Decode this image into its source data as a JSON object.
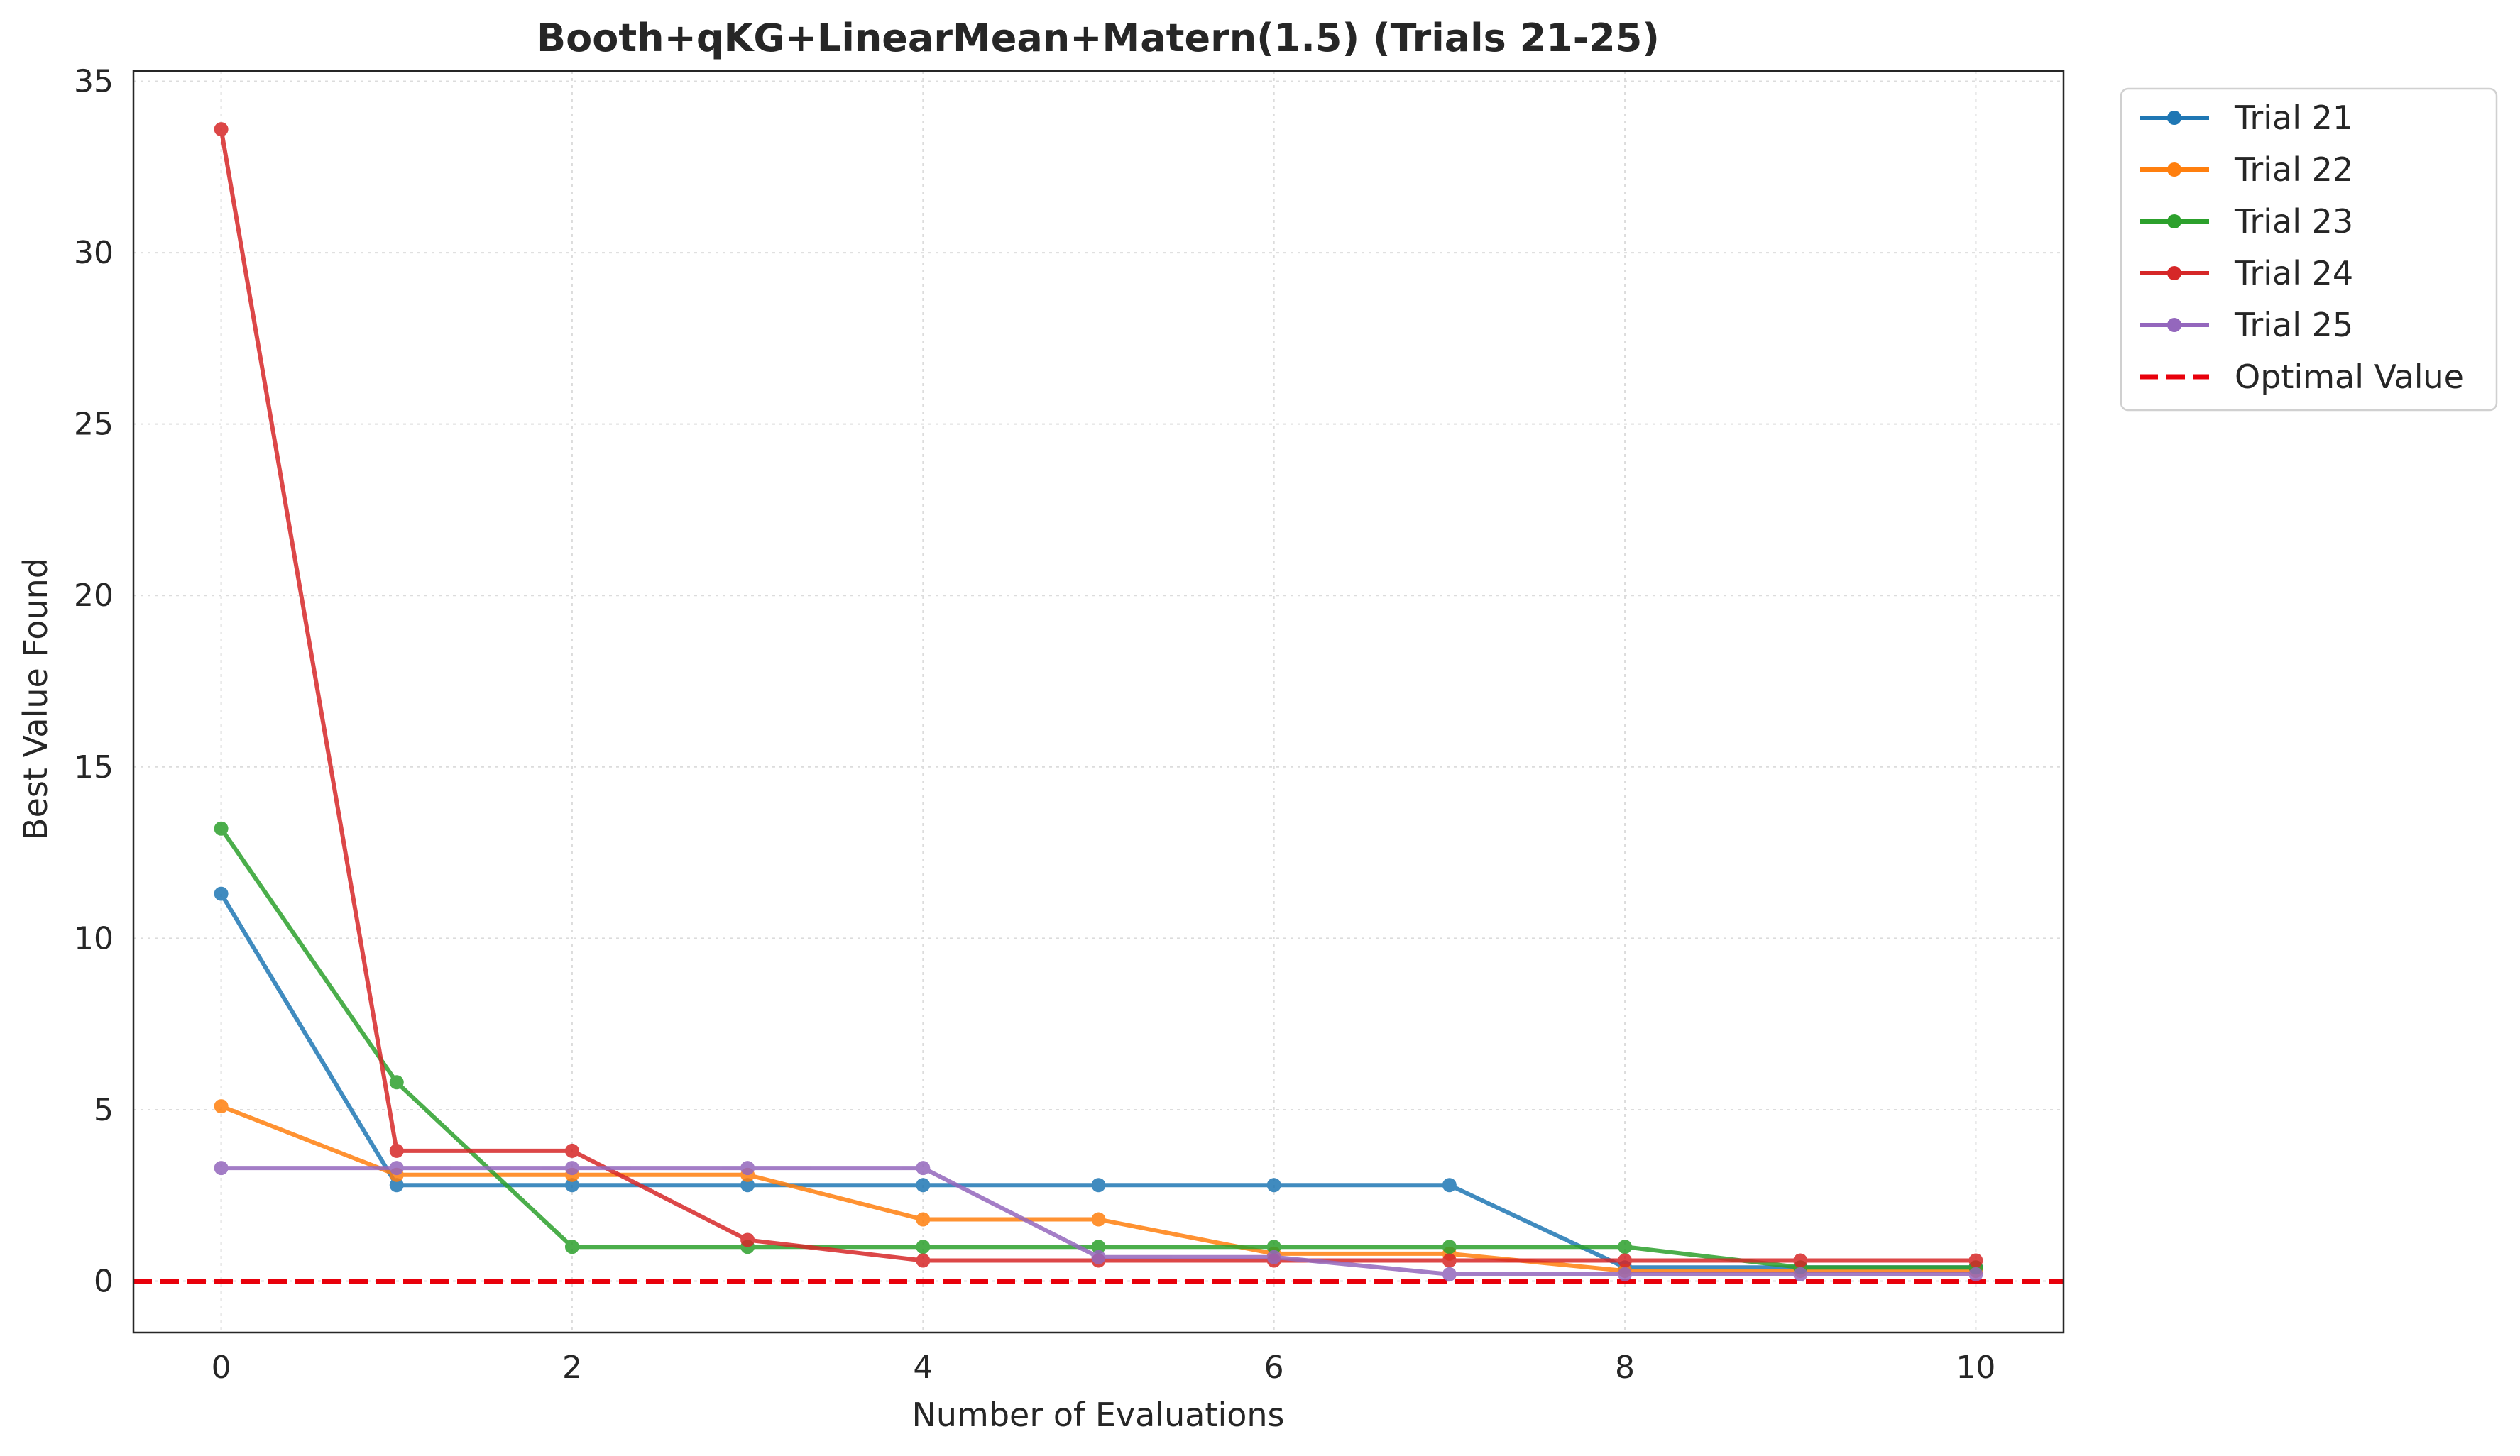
{
  "chart_data": {
    "type": "line",
    "title": "Booth+qKG+LinearMean+Matern(1.5) (Trials 21-25)",
    "xlabel": "Number of Evaluations",
    "ylabel": "Best Value Found",
    "xlim": [
      -0.5,
      10.5
    ],
    "ylim": [
      -1.5,
      35.3
    ],
    "xticks": [
      0,
      2,
      4,
      6,
      8,
      10
    ],
    "yticks": [
      0,
      5,
      10,
      15,
      20,
      25,
      30,
      35
    ],
    "grid": true,
    "legend_position": "outside-top-right",
    "x": [
      0,
      1,
      2,
      3,
      4,
      5,
      6,
      7,
      8,
      9,
      10
    ],
    "series": [
      {
        "name": "Trial 21",
        "color": "#1f77b4",
        "values": [
          11.3,
          2.8,
          2.8,
          2.8,
          2.8,
          2.8,
          2.8,
          2.8,
          0.4,
          0.4,
          0.4
        ]
      },
      {
        "name": "Trial 22",
        "color": "#ff7f0e",
        "values": [
          5.1,
          3.1,
          3.1,
          3.1,
          1.8,
          1.8,
          0.8,
          0.8,
          0.3,
          0.3,
          0.3
        ]
      },
      {
        "name": "Trial 23",
        "color": "#2ca02c",
        "values": [
          13.2,
          5.8,
          1.0,
          1.0,
          1.0,
          1.0,
          1.0,
          1.0,
          1.0,
          0.4,
          0.4
        ]
      },
      {
        "name": "Trial 24",
        "color": "#d62728",
        "values": [
          33.6,
          3.8,
          3.8,
          1.2,
          0.6,
          0.6,
          0.6,
          0.6,
          0.6,
          0.6,
          0.6
        ]
      },
      {
        "name": "Trial 25",
        "color": "#9467bd",
        "values": [
          3.3,
          3.3,
          3.3,
          3.3,
          3.3,
          0.7,
          0.7,
          0.2,
          0.2,
          0.2,
          0.2
        ]
      }
    ],
    "reference_line": {
      "name": "Optimal Value",
      "value": 0,
      "color": "#e8000b",
      "style": "dashed"
    }
  }
}
